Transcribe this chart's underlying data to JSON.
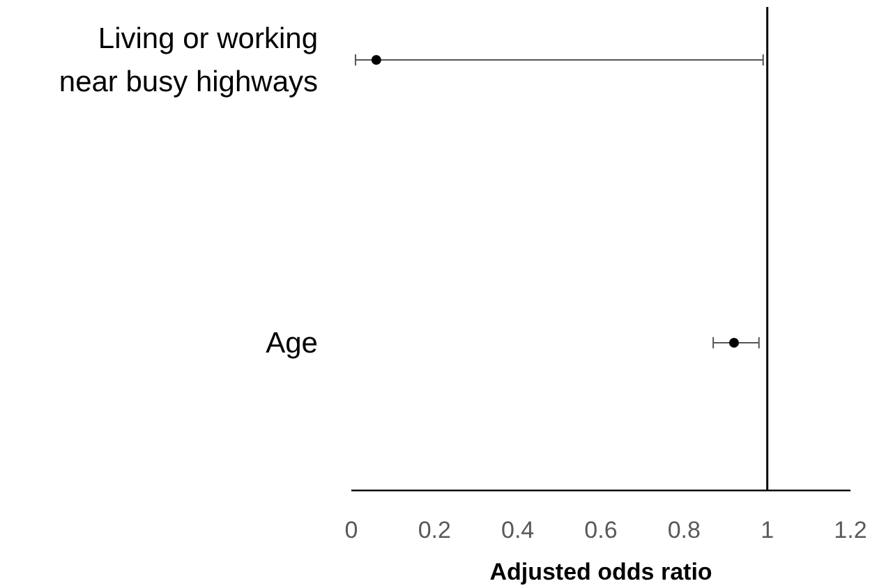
{
  "chart_data": {
    "type": "scatter",
    "orientation": "horizontal",
    "categories": [
      "Living or working near busy highways",
      "Age"
    ],
    "values": [
      0.06,
      0.92
    ],
    "errors": [
      [
        0.01,
        0.99
      ],
      [
        0.87,
        0.98
      ]
    ],
    "color": "#000000",
    "marker": "circle",
    "xlabel": "Adjusted odds ratio",
    "xlim": [
      0,
      1.2
    ],
    "xticks": [
      0,
      0.2,
      0.4,
      0.6,
      0.8,
      1,
      1.2
    ],
    "ref_lines": [
      {
        "axis": "x",
        "value": 1,
        "color": "#000000"
      }
    ],
    "grid": false
  }
}
